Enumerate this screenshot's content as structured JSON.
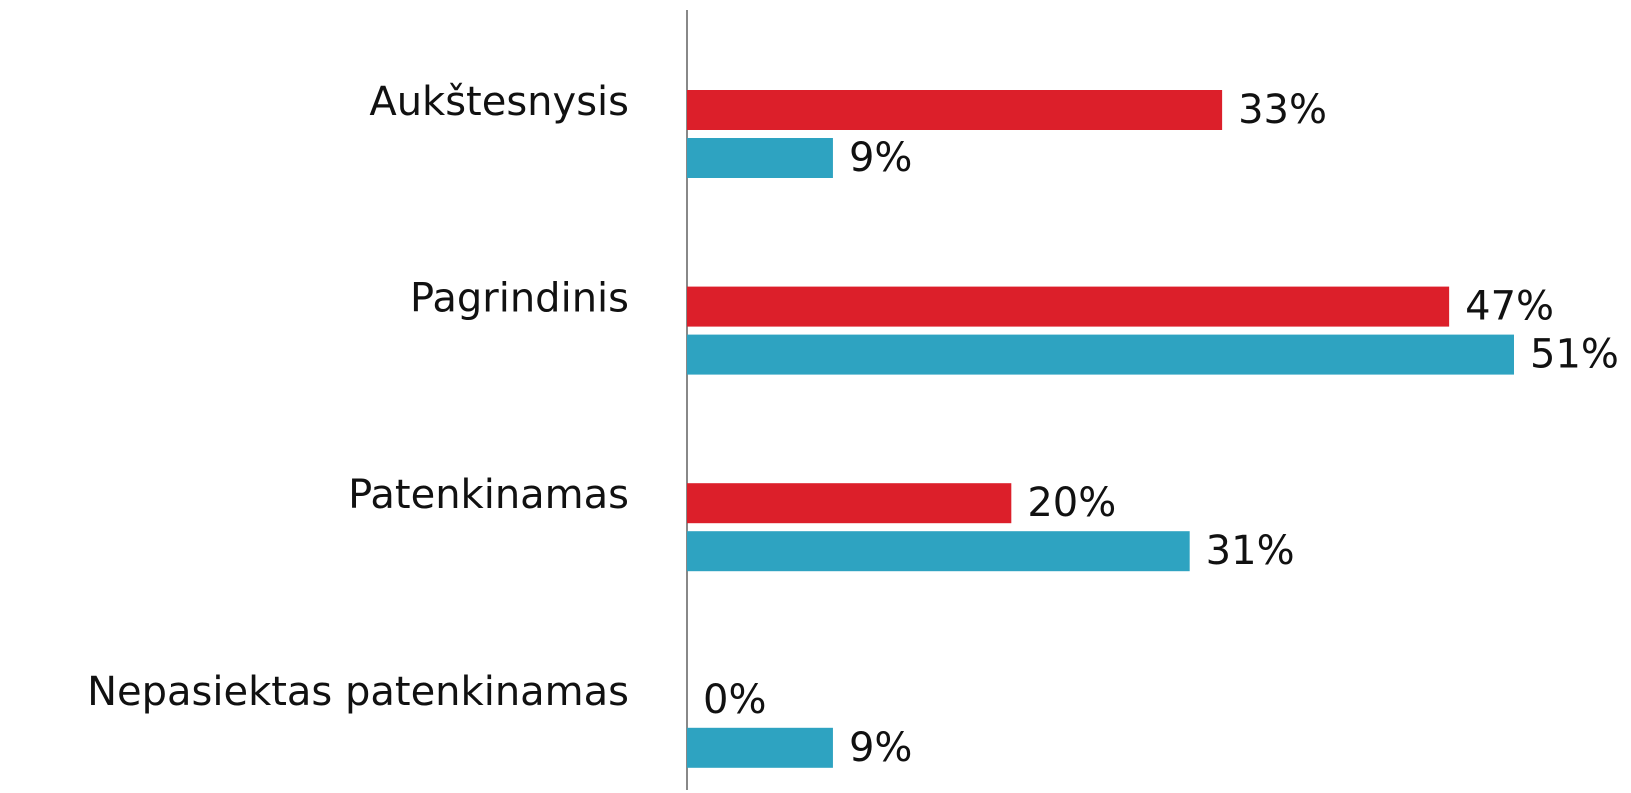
{
  "chart_data": {
    "type": "bar",
    "orientation": "horizontal",
    "categories": [
      "Aukštesnysis",
      "Pagrindinis",
      "Patenkinamas",
      "Nepasiektas patenkinamas"
    ],
    "series": [
      {
        "color": "#dc1f2a",
        "values": [
          33,
          47,
          20,
          0
        ],
        "value_labels": [
          "33%",
          "47%",
          "20%",
          "0%"
        ]
      },
      {
        "color": "#2ea3c1",
        "values": [
          9,
          51,
          31,
          9
        ],
        "value_labels": [
          "9%",
          "51%",
          "31%",
          "9%"
        ]
      }
    ]
  }
}
